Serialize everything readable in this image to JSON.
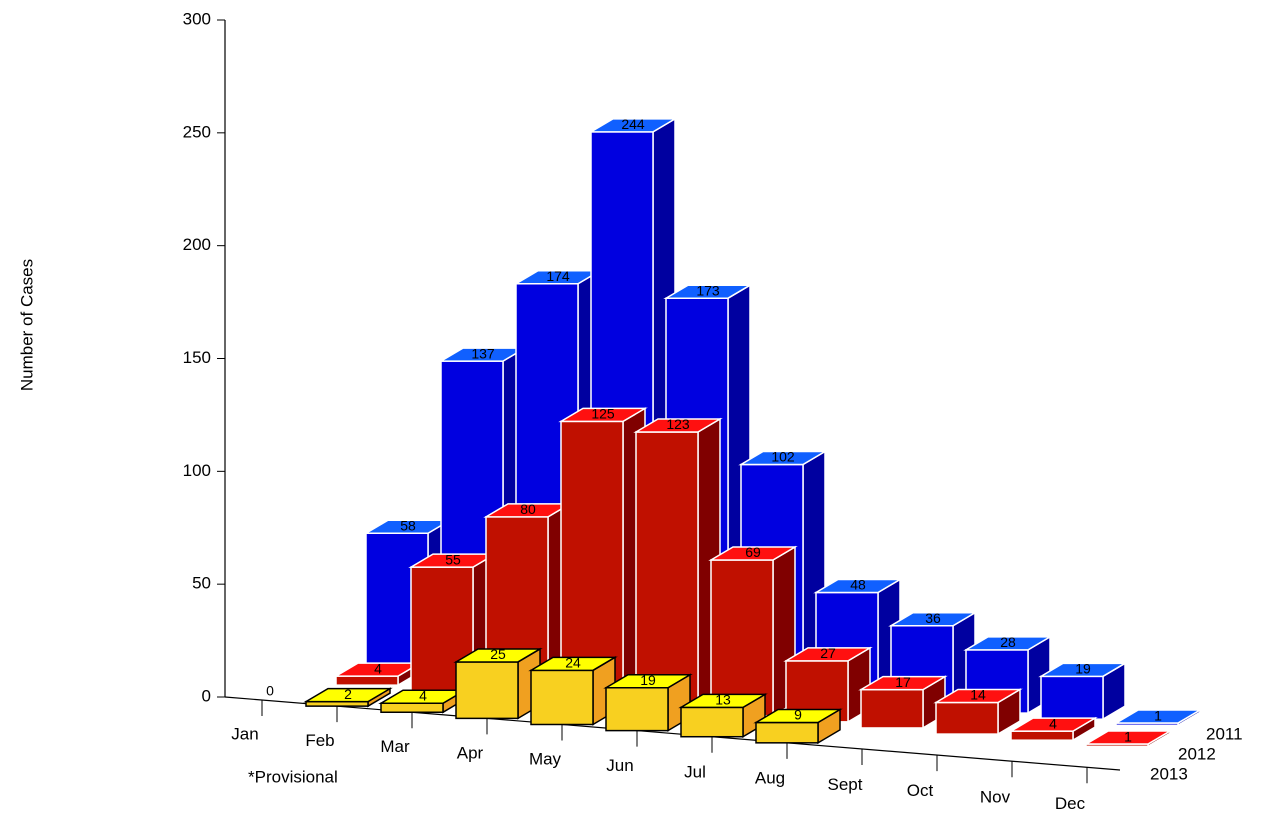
{
  "chart_data": {
    "type": "bar3d",
    "y_label": "Number of Cases",
    "note": "*Provisional",
    "categories": [
      "Jan",
      "Feb",
      "Mar",
      "Apr",
      "May",
      "Jun",
      "Jul",
      "Aug",
      "Sept",
      "Oct",
      "Nov",
      "Dec"
    ],
    "series": [
      {
        "name": "2011",
        "color": "#0000e0",
        "values": [
          null,
          58,
          137,
          174,
          244,
          173,
          102,
          48,
          36,
          28,
          19,
          1
        ]
      },
      {
        "name": "2012",
        "color": "#c01000",
        "values": [
          null,
          4,
          55,
          80,
          125,
          123,
          69,
          27,
          17,
          14,
          4,
          1
        ]
      },
      {
        "name": "2013",
        "color": "#f8d020",
        "values": [
          0,
          2,
          4,
          25,
          24,
          19,
          13,
          9,
          null,
          null,
          null,
          null
        ]
      }
    ],
    "ylim": [
      0,
      300
    ],
    "yticks": [
      0,
      50,
      100,
      150,
      200,
      250,
      300
    ]
  }
}
